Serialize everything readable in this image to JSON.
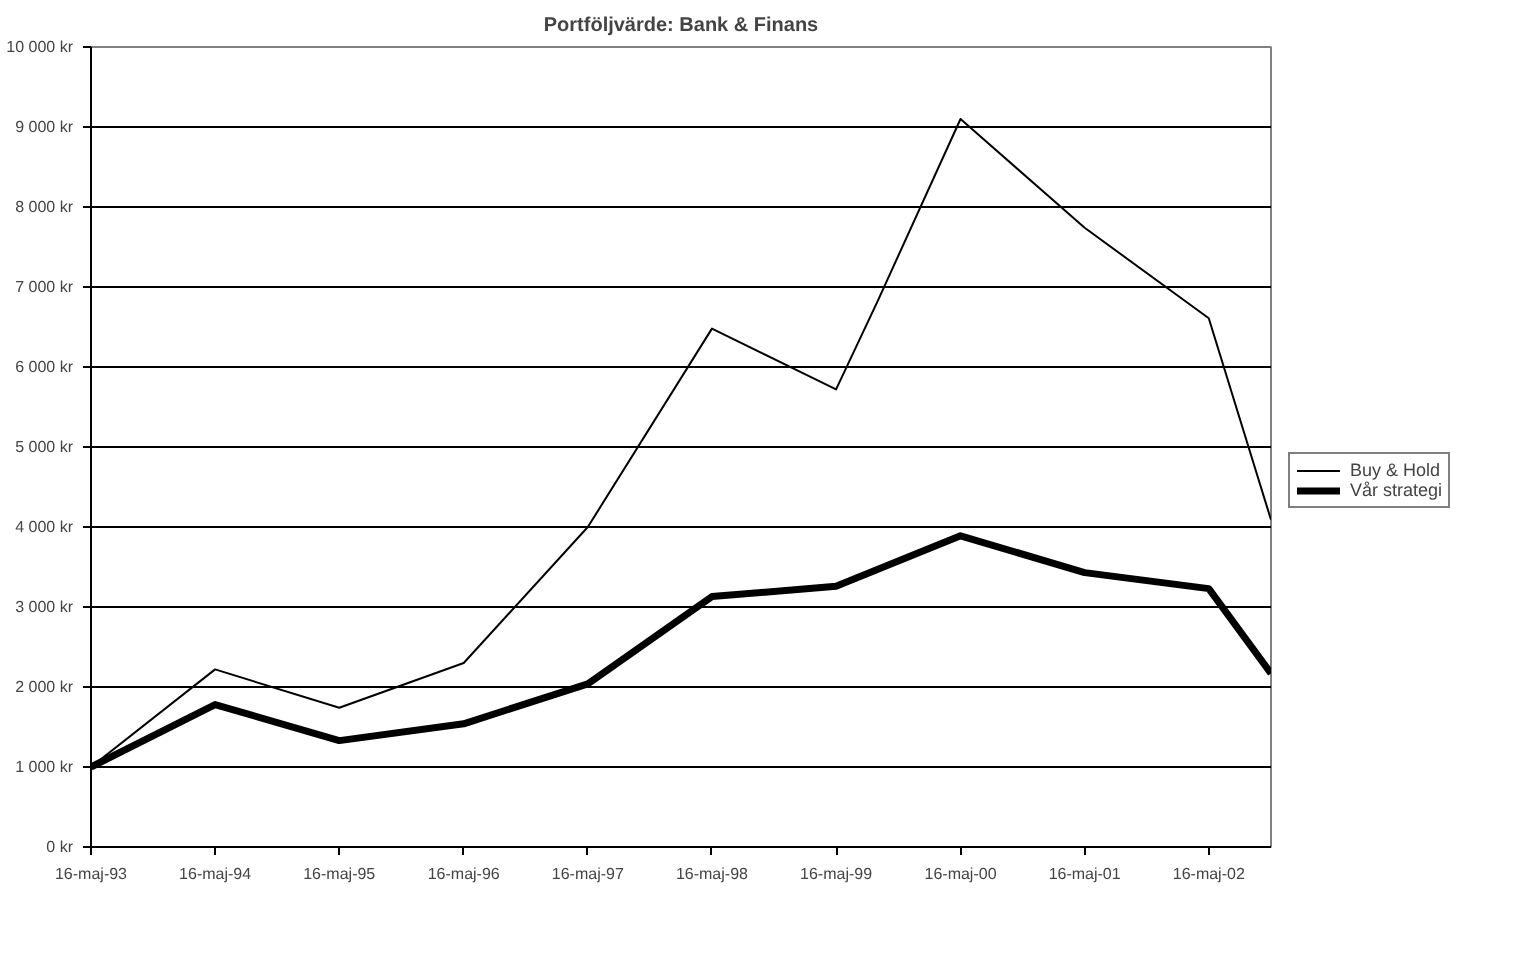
{
  "chart_data": {
    "type": "line",
    "title": "Portföljvärde: Bank & Finans",
    "ylim": [
      0,
      10000
    ],
    "yticks": [
      {
        "value": 0,
        "label": "0 kr"
      },
      {
        "value": 1000,
        "label": "1 000 kr"
      },
      {
        "value": 2000,
        "label": "2 000 kr"
      },
      {
        "value": 3000,
        "label": "3 000 kr"
      },
      {
        "value": 4000,
        "label": "4 000 kr"
      },
      {
        "value": 5000,
        "label": "5 000 kr"
      },
      {
        "value": 6000,
        "label": "6 000 kr"
      },
      {
        "value": 7000,
        "label": "7 000 kr"
      },
      {
        "value": 8000,
        "label": "8 000 kr"
      },
      {
        "value": 9000,
        "label": "9 000 kr"
      },
      {
        "value": 10000,
        "label": "10 000 kr"
      }
    ],
    "xlim": [
      "1993-05-16",
      "2002-11-15"
    ],
    "xticks": [
      {
        "value": "1993-05-16",
        "label": "16-maj-93"
      },
      {
        "value": "1994-05-16",
        "label": "16-maj-94"
      },
      {
        "value": "1995-05-16",
        "label": "16-maj-95"
      },
      {
        "value": "1996-05-16",
        "label": "16-maj-96"
      },
      {
        "value": "1997-05-16",
        "label": "16-maj-97"
      },
      {
        "value": "1998-05-16",
        "label": "16-maj-98"
      },
      {
        "value": "1999-05-16",
        "label": "16-maj-99"
      },
      {
        "value": "2000-05-16",
        "label": "16-maj-00"
      },
      {
        "value": "2001-05-16",
        "label": "16-maj-01"
      },
      {
        "value": "2002-05-16",
        "label": "16-maj-02"
      }
    ],
    "grid": "y",
    "legend": "right",
    "marker": "none",
    "series": [
      {
        "name": "Buy & Hold",
        "color": "#000000",
        "x": [
          "1993-05-16",
          "1994-05-16",
          "1995-05-16",
          "1996-05-16",
          "1997-05-16",
          "1998-05-16",
          "1999-05-16",
          "1999-09-16",
          "2000-05-16",
          "2001-05-16",
          "2002-05-16",
          "2002-11-15"
        ],
        "values": [
          1000,
          2220,
          1740,
          2300,
          4000,
          6480,
          5720,
          6830,
          9100,
          7740,
          6610,
          4090
        ]
      },
      {
        "name": "Vår strategi",
        "color": "#000000",
        "x": [
          "1993-05-16",
          "1994-05-16",
          "1995-05-16",
          "1996-05-16",
          "1997-05-16",
          "1998-05-16",
          "1999-05-16",
          "2000-05-16",
          "2001-05-16",
          "2002-05-16",
          "2002-11-15"
        ],
        "values": [
          1000,
          1780,
          1330,
          1540,
          2040,
          3130,
          3260,
          3890,
          3430,
          3230,
          2170
        ]
      }
    ]
  }
}
